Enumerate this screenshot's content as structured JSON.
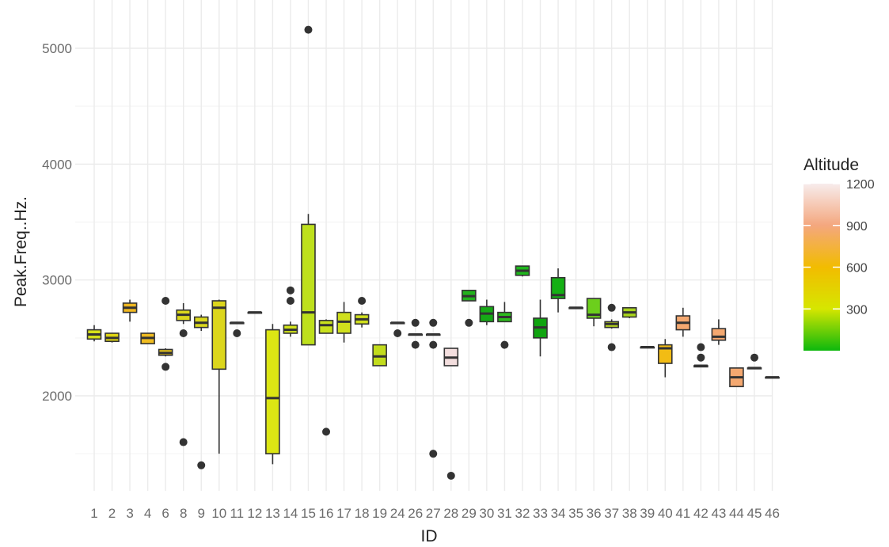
{
  "chart_data": {
    "type": "boxplot",
    "xlabel": "ID",
    "ylabel": "Peak.Freq..Hz.",
    "ylim": [
      1200,
      5300
    ],
    "y_ticks": [
      2000,
      3000,
      4000,
      5000
    ],
    "grid": true,
    "legend": {
      "title": "Altitude",
      "position": "right",
      "type": "colorbar",
      "range": [
        0,
        1200
      ],
      "ticks": [
        300,
        600,
        900,
        1200
      ],
      "colors": [
        "#0db80d",
        "#d6e600",
        "#f2bc00",
        "#f4a77e",
        "#f7ecec"
      ]
    },
    "boxes": [
      {
        "id": "1",
        "min": 2470,
        "q1": 2490,
        "median": 2530,
        "q3": 2570,
        "max": 2610,
        "outliers": [],
        "color": "#d6e01a"
      },
      {
        "id": "2",
        "min": 2460,
        "q1": 2470,
        "median": 2500,
        "q3": 2540,
        "max": 2540,
        "outliers": [],
        "color": "#e0d612"
      },
      {
        "id": "3",
        "min": 2640,
        "q1": 2720,
        "median": 2760,
        "q3": 2800,
        "max": 2830,
        "outliers": [],
        "color": "#f0b820"
      },
      {
        "id": "4",
        "min": 2450,
        "q1": 2450,
        "median": 2500,
        "q3": 2540,
        "max": 2540,
        "outliers": [],
        "color": "#f0bc20"
      },
      {
        "id": "6",
        "min": 2340,
        "q1": 2350,
        "median": 2370,
        "q3": 2400,
        "max": 2410,
        "outliers": [
          2820,
          2250
        ],
        "color": "#e6c418"
      },
      {
        "id": "8",
        "min": 2620,
        "q1": 2650,
        "median": 2700,
        "q3": 2740,
        "max": 2800,
        "outliers": [
          2540,
          1600
        ],
        "color": "#dbd81c"
      },
      {
        "id": "9",
        "min": 2560,
        "q1": 2590,
        "median": 2630,
        "q3": 2680,
        "max": 2700,
        "outliers": [
          1400
        ],
        "color": "#dbd81c"
      },
      {
        "id": "10",
        "min": 1500,
        "q1": 2230,
        "median": 2760,
        "q3": 2820,
        "max": 2830,
        "outliers": [],
        "color": "#dcd61c"
      },
      {
        "id": "11",
        "min": 2630,
        "q1": 2630,
        "median": 2630,
        "q3": 2630,
        "max": 2630,
        "outliers": [
          2540
        ],
        "color": "#cde01c"
      },
      {
        "id": "12",
        "min": 2720,
        "q1": 2720,
        "median": 2720,
        "q3": 2720,
        "max": 2720,
        "outliers": [],
        "color": "#cde01c"
      },
      {
        "id": "13",
        "min": 1410,
        "q1": 1500,
        "median": 1980,
        "q3": 2570,
        "max": 2620,
        "outliers": [],
        "color": "#dce614"
      },
      {
        "id": "14",
        "min": 2510,
        "q1": 2540,
        "median": 2570,
        "q3": 2610,
        "max": 2640,
        "outliers": [
          2910,
          2820
        ],
        "color": "#d2e41a"
      },
      {
        "id": "15",
        "min": 2440,
        "q1": 2440,
        "median": 2720,
        "q3": 3480,
        "max": 3570,
        "outliers": [
          5160
        ],
        "color": "#bee01c"
      },
      {
        "id": "16",
        "min": 2540,
        "q1": 2540,
        "median": 2610,
        "q3": 2650,
        "max": 2660,
        "outliers": [
          1690
        ],
        "color": "#c8e01c"
      },
      {
        "id": "17",
        "min": 2460,
        "q1": 2540,
        "median": 2640,
        "q3": 2720,
        "max": 2810,
        "outliers": [],
        "color": "#d0e01c"
      },
      {
        "id": "18",
        "min": 2590,
        "q1": 2620,
        "median": 2660,
        "q3": 2700,
        "max": 2720,
        "outliers": [
          2820
        ],
        "color": "#d0e01c"
      },
      {
        "id": "19",
        "min": 2260,
        "q1": 2260,
        "median": 2340,
        "q3": 2440,
        "max": 2440,
        "outliers": [],
        "color": "#c2dc1c"
      },
      {
        "id": "24",
        "min": 2630,
        "q1": 2630,
        "median": 2630,
        "q3": 2630,
        "max": 2630,
        "outliers": [
          2540
        ],
        "color": "#c2dc1c"
      },
      {
        "id": "26",
        "min": 2530,
        "q1": 2530,
        "median": 2530,
        "q3": 2530,
        "max": 2530,
        "outliers": [
          2630,
          2440
        ],
        "color": "#c2dc1c"
      },
      {
        "id": "27",
        "min": 2530,
        "q1": 2530,
        "median": 2530,
        "q3": 2530,
        "max": 2530,
        "outliers": [
          2630,
          2440,
          1500
        ],
        "color": "#c2dc1c"
      },
      {
        "id": "28",
        "min": 2260,
        "q1": 2260,
        "median": 2330,
        "q3": 2410,
        "max": 2410,
        "outliers": [
          1310
        ],
        "color": "#f3dede"
      },
      {
        "id": "29",
        "min": 2820,
        "q1": 2820,
        "median": 2860,
        "q3": 2910,
        "max": 2910,
        "outliers": [
          2630
        ],
        "color": "#22b21c"
      },
      {
        "id": "30",
        "min": 2610,
        "q1": 2640,
        "median": 2710,
        "q3": 2770,
        "max": 2830,
        "outliers": [],
        "color": "#16a916"
      },
      {
        "id": "31",
        "min": 2640,
        "q1": 2640,
        "median": 2680,
        "q3": 2720,
        "max": 2810,
        "outliers": [
          2440
        ],
        "color": "#2cbc1c"
      },
      {
        "id": "32",
        "min": 3030,
        "q1": 3040,
        "median": 3080,
        "q3": 3120,
        "max": 3120,
        "outliers": [],
        "color": "#1eb61c"
      },
      {
        "id": "33",
        "min": 2340,
        "q1": 2500,
        "median": 2590,
        "q3": 2670,
        "max": 2830,
        "outliers": [],
        "color": "#0fa40f"
      },
      {
        "id": "34",
        "min": 2720,
        "q1": 2840,
        "median": 2870,
        "q3": 3020,
        "max": 3100,
        "outliers": [],
        "color": "#14b014"
      },
      {
        "id": "35",
        "min": 2760,
        "q1": 2760,
        "median": 2760,
        "q3": 2760,
        "max": 2760,
        "outliers": [],
        "color": "#5cc81c"
      },
      {
        "id": "36",
        "min": 2600,
        "q1": 2670,
        "median": 2700,
        "q3": 2840,
        "max": 2840,
        "outliers": [],
        "color": "#6ccf1c"
      },
      {
        "id": "37",
        "min": 2580,
        "q1": 2590,
        "median": 2620,
        "q3": 2640,
        "max": 2660,
        "outliers": [
          2760,
          2420
        ],
        "color": "#b6d41c"
      },
      {
        "id": "38",
        "min": 2670,
        "q1": 2680,
        "median": 2720,
        "q3": 2760,
        "max": 2760,
        "outliers": [],
        "color": "#a8d41c"
      },
      {
        "id": "39",
        "min": 2420,
        "q1": 2420,
        "median": 2420,
        "q3": 2420,
        "max": 2420,
        "outliers": [],
        "color": "#a8d41c"
      },
      {
        "id": "40",
        "min": 2160,
        "q1": 2280,
        "median": 2410,
        "q3": 2440,
        "max": 2490,
        "outliers": [],
        "color": "#f2bc14"
      },
      {
        "id": "41",
        "min": 2510,
        "q1": 2570,
        "median": 2630,
        "q3": 2690,
        "max": 2760,
        "outliers": [],
        "color": "#f4a870"
      },
      {
        "id": "42",
        "min": 2250,
        "q1": 2250,
        "median": 2260,
        "q3": 2260,
        "max": 2260,
        "outliers": [
          2420,
          2330
        ],
        "color": "#f4a870"
      },
      {
        "id": "43",
        "min": 2440,
        "q1": 2480,
        "median": 2510,
        "q3": 2580,
        "max": 2660,
        "outliers": [],
        "color": "#f4a870"
      },
      {
        "id": "44",
        "min": 2080,
        "q1": 2080,
        "median": 2160,
        "q3": 2240,
        "max": 2240,
        "outliers": [],
        "color": "#f4a870"
      },
      {
        "id": "45",
        "min": 2240,
        "q1": 2240,
        "median": 2240,
        "q3": 2240,
        "max": 2240,
        "outliers": [
          2330
        ],
        "color": "#f4a870"
      },
      {
        "id": "46",
        "min": 2160,
        "q1": 2160,
        "median": 2160,
        "q3": 2160,
        "max": 2160,
        "outliers": [],
        "color": "#f4a870"
      }
    ]
  }
}
